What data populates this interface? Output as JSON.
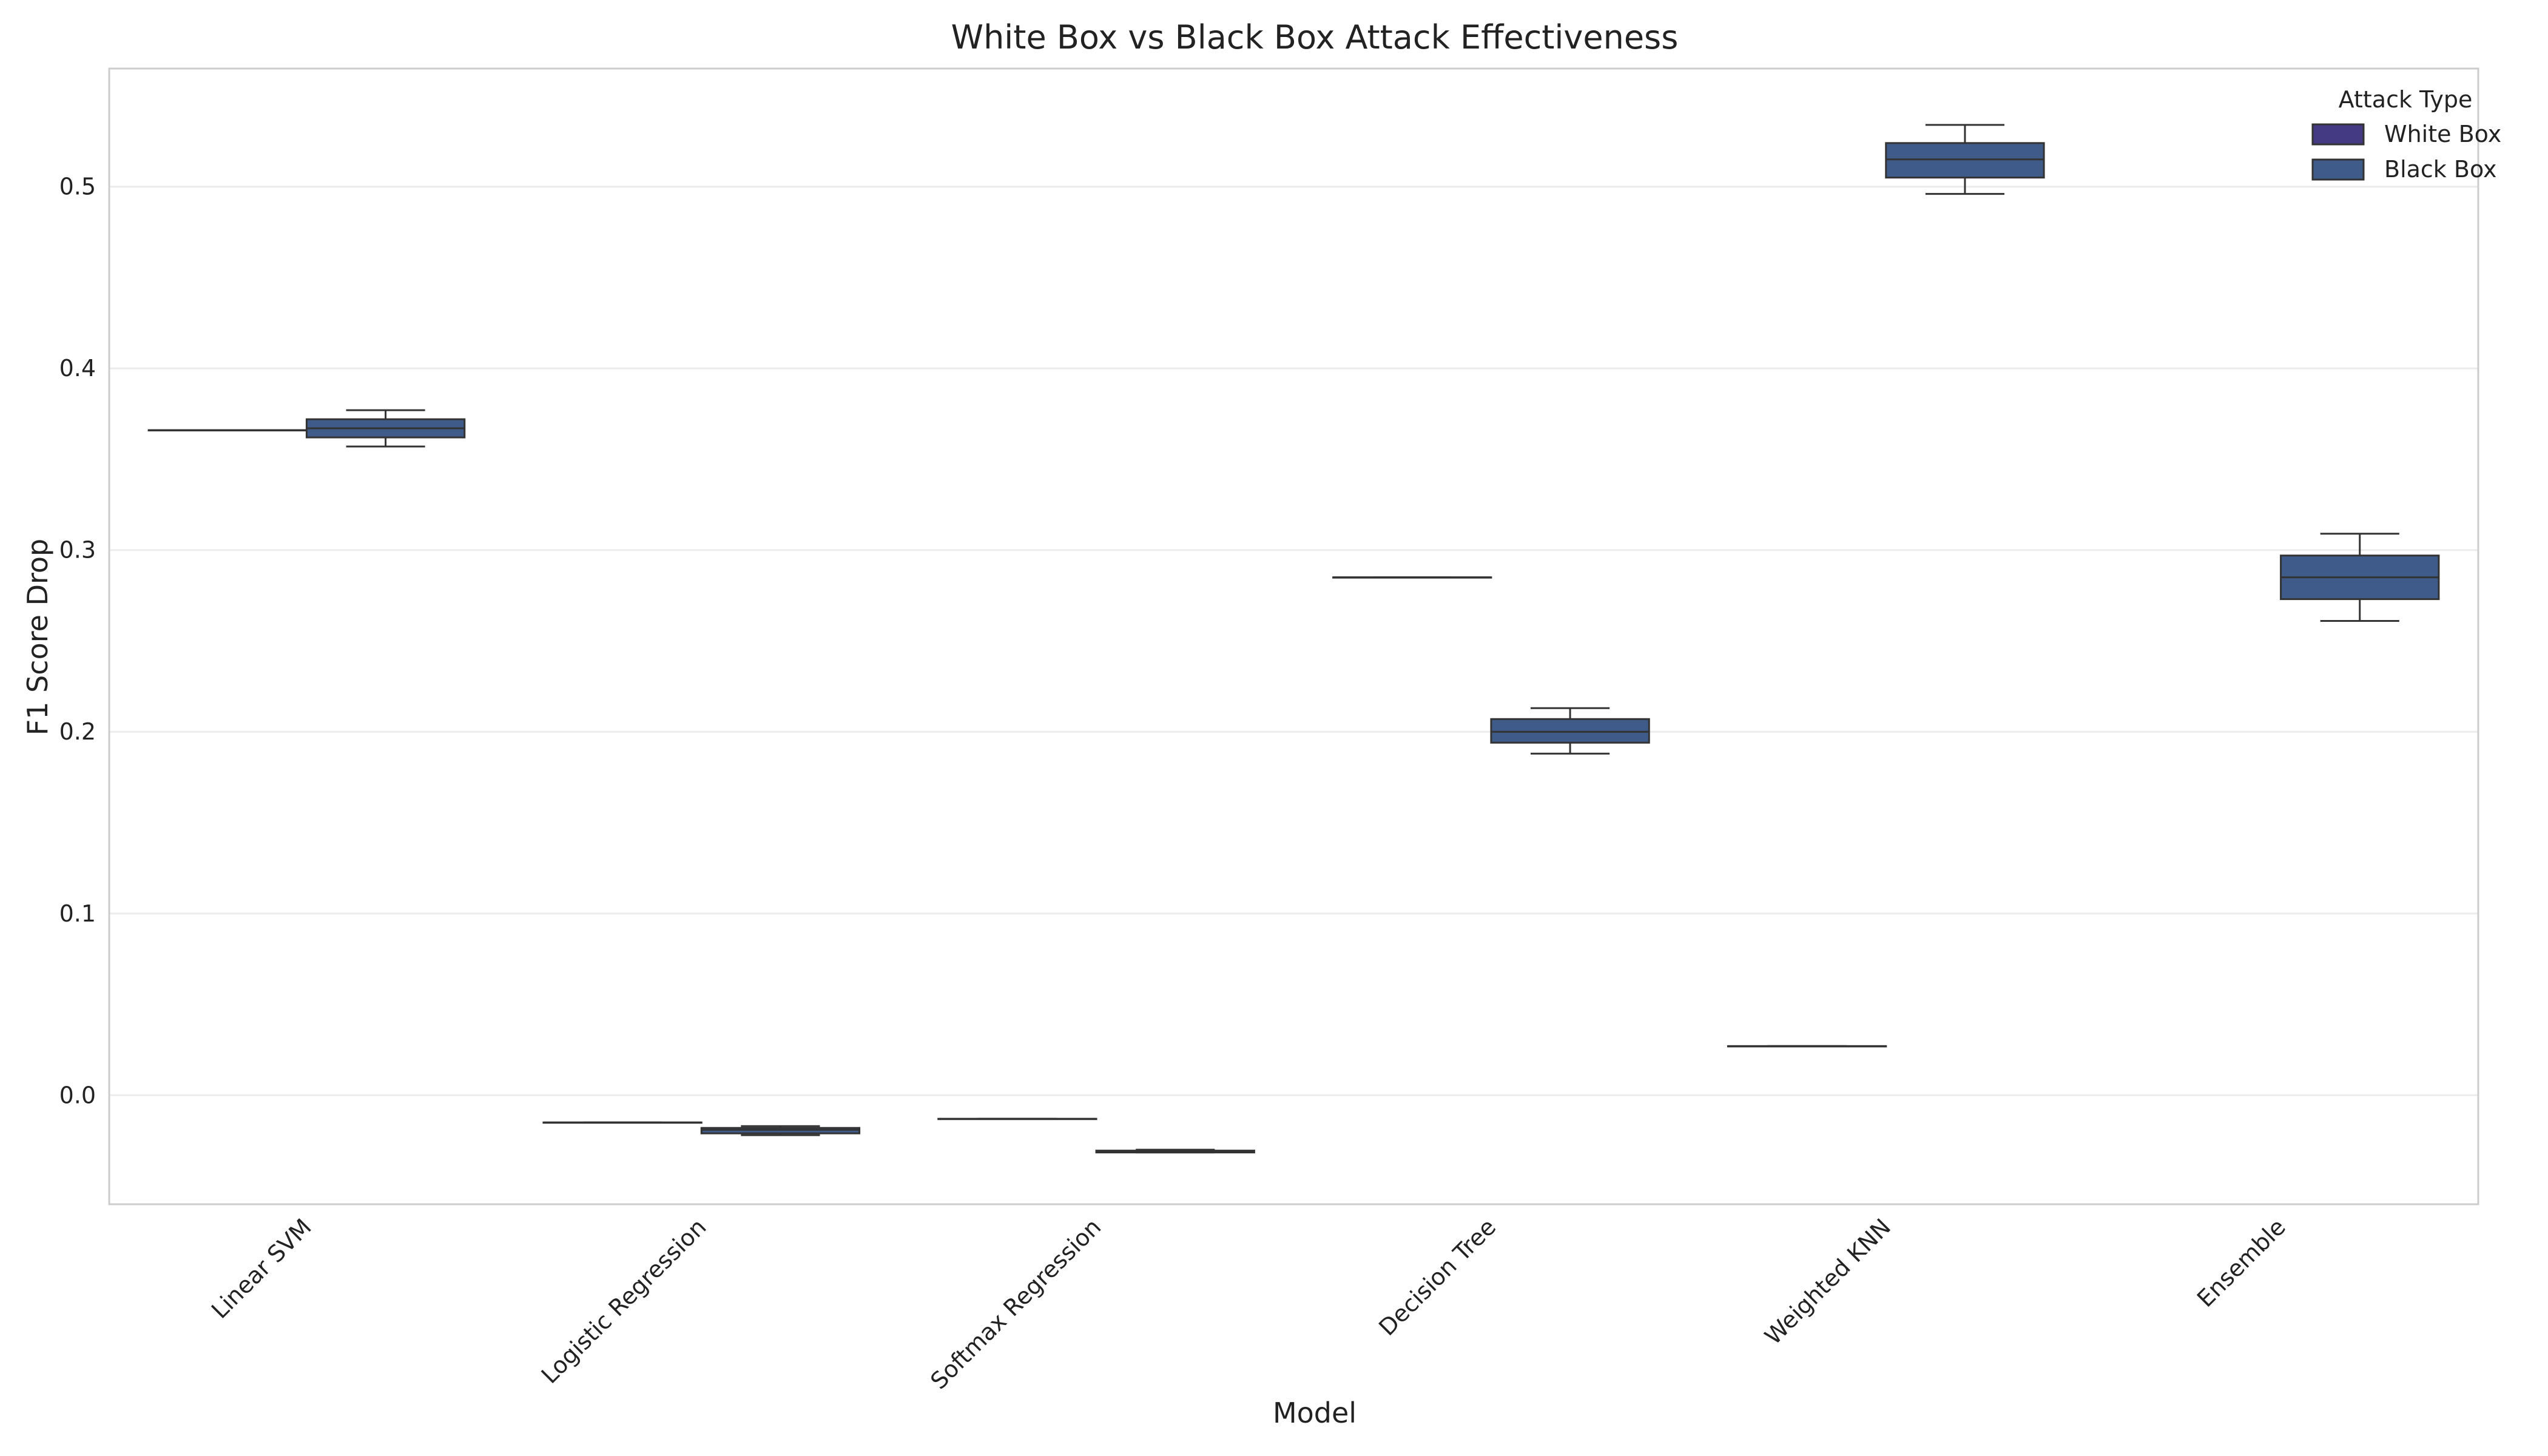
{
  "chart_data": {
    "type": "box",
    "title": "White Box vs Black Box Attack Effectiveness",
    "xlabel": "Model",
    "ylabel": "F1 Score Drop",
    "ylim": [
      -0.06,
      0.565
    ],
    "yticks": [
      0.0,
      0.1,
      0.2,
      0.3,
      0.4,
      0.5
    ],
    "ytick_labels": [
      "0.0",
      "0.1",
      "0.2",
      "0.3",
      "0.4",
      "0.5"
    ],
    "categories": [
      "Linear SVM",
      "Logistic Regression",
      "Softmax Regression",
      "Decision Tree",
      "Weighted KNN",
      "Ensemble"
    ],
    "grid": true,
    "legend": {
      "title": "Attack Type",
      "position": "top-right",
      "entries": [
        "White Box",
        "Black Box"
      ]
    },
    "series": [
      {
        "name": "White Box",
        "color": "#443a83",
        "boxes": [
          {
            "min": 0.366,
            "q1": 0.366,
            "median": 0.366,
            "q3": 0.366,
            "max": 0.366
          },
          {
            "min": -0.015,
            "q1": -0.015,
            "median": -0.015,
            "q3": -0.015,
            "max": -0.015
          },
          {
            "min": -0.013,
            "q1": -0.013,
            "median": -0.013,
            "q3": -0.013,
            "max": -0.013
          },
          {
            "min": 0.285,
            "q1": 0.285,
            "median": 0.285,
            "q3": 0.285,
            "max": 0.285
          },
          {
            "min": 0.027,
            "q1": 0.027,
            "median": 0.027,
            "q3": 0.027,
            "max": 0.027
          },
          null
        ]
      },
      {
        "name": "Black Box",
        "color": "#3f5b8a",
        "boxes": [
          {
            "min": 0.357,
            "q1": 0.362,
            "median": 0.367,
            "q3": 0.372,
            "max": 0.377
          },
          {
            "min": -0.022,
            "q1": -0.021,
            "median": -0.019,
            "q3": -0.018,
            "max": -0.017
          },
          {
            "min": -0.0315,
            "q1": -0.0315,
            "median": -0.031,
            "q3": -0.0305,
            "max": -0.03
          },
          {
            "min": 0.188,
            "q1": 0.194,
            "median": 0.2,
            "q3": 0.207,
            "max": 0.213
          },
          {
            "min": 0.496,
            "q1": 0.505,
            "median": 0.515,
            "q3": 0.524,
            "max": 0.534
          },
          {
            "min": 0.261,
            "q1": 0.273,
            "median": 0.285,
            "q3": 0.297,
            "max": 0.309
          }
        ]
      }
    ]
  }
}
